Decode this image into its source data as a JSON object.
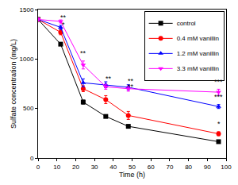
{
  "chart_data": {
    "type": "line",
    "x_label": "Time (h)",
    "y_label": "Sulfate concentration (mg/L)",
    "xlim": [
      0,
      100
    ],
    "xticks": [
      0,
      10,
      20,
      30,
      40,
      50,
      60,
      70,
      80,
      90,
      100
    ],
    "ylim": [
      0,
      1500
    ],
    "yticks": [
      0,
      500,
      1000,
      1500
    ],
    "grid": false,
    "legend": "top right",
    "series": [
      {
        "name": "control",
        "color": "#000000",
        "marker": "square",
        "x": [
          0,
          12,
          24,
          36,
          48,
          96
        ],
        "values": [
          1400,
          1150,
          565,
          420,
          320,
          165
        ],
        "error": [
          15,
          15,
          20,
          15,
          15,
          15
        ]
      },
      {
        "name": "0.4 mM vanillin",
        "color": "#ff0000",
        "marker": "circle",
        "x": [
          0,
          12,
          24,
          36,
          48,
          96
        ],
        "values": [
          1400,
          1270,
          700,
          590,
          430,
          245
        ],
        "error": [
          15,
          25,
          30,
          40,
          40,
          20
        ]
      },
      {
        "name": "1.2 mM vanillin",
        "color": "#0000ff",
        "marker": "triangle-up",
        "x": [
          0,
          12,
          24,
          36,
          48,
          96
        ],
        "values": [
          1400,
          1320,
          760,
          740,
          715,
          520
        ],
        "error": [
          15,
          20,
          40,
          30,
          25,
          20
        ]
      },
      {
        "name": "3.3 mM vanillin",
        "color": "#ff00ff",
        "marker": "triangle-down",
        "x": [
          0,
          12,
          24,
          36,
          48,
          96
        ],
        "values": [
          1400,
          1380,
          940,
          720,
          700,
          665
        ],
        "error": [
          15,
          15,
          40,
          25,
          25,
          30
        ]
      }
    ],
    "annotations": [
      {
        "x": 13.5,
        "y": 1290,
        "text": "*"
      },
      {
        "x": 13.5,
        "y": 1360,
        "text": "**"
      },
      {
        "x": 24,
        "y": 1000,
        "text": "**"
      },
      {
        "x": 37.5,
        "y": 745,
        "text": "**"
      },
      {
        "x": 49.5,
        "y": 725,
        "text": "**"
      },
      {
        "x": 49.5,
        "y": 665,
        "text": "**"
      },
      {
        "x": 96,
        "y": 710,
        "text": "***"
      },
      {
        "x": 96,
        "y": 560,
        "text": "***"
      },
      {
        "x": 96,
        "y": 285,
        "text": "*"
      }
    ]
  }
}
